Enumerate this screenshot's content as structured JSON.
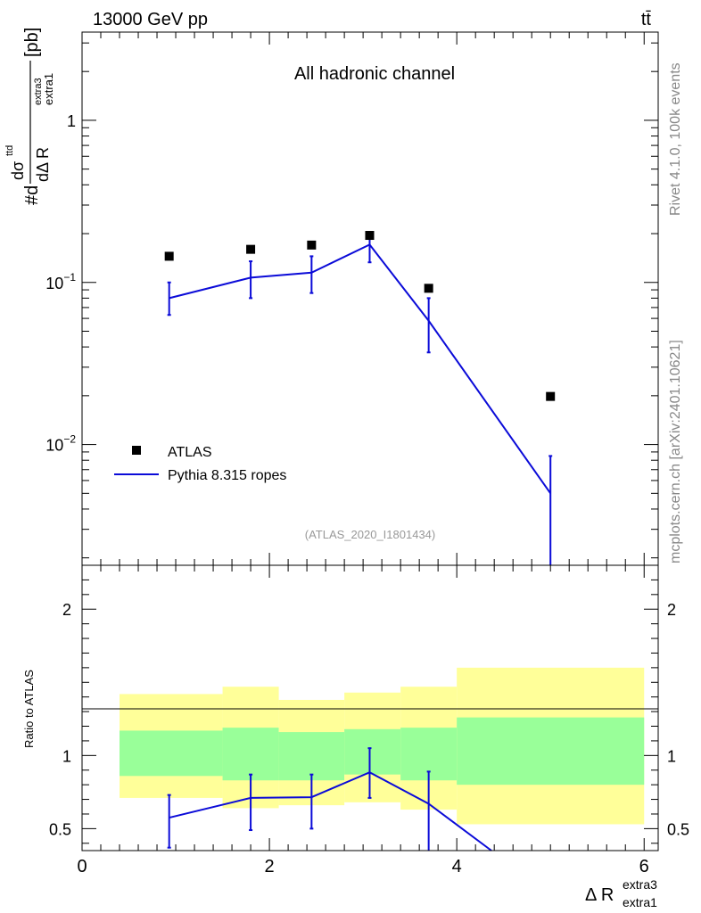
{
  "header": {
    "energy_label": "13000 GeV pp",
    "process_label": "tt̄"
  },
  "side_labels": {
    "rivet": "Rivet 4.1.0,  100k events",
    "mcplots": "mcplots.cern.ch [arXiv:2401.10621]"
  },
  "chart_data": [
    {
      "type": "scatter+line",
      "title": "All hadronic channel",
      "analysis_label": "(ATLAS_2020_I1801434)",
      "ylabel": {
        "prefix": "#d",
        "frac_num": "dσ",
        "frac_num_sup": "ttd",
        "frac_den": "dΔ R",
        "frac_den_sup": "extra3",
        "frac_den_sub": "extra1",
        "unit": "[pb]"
      },
      "yscale": "log",
      "ylim": [
        0.0018,
        3.5
      ],
      "xlim": [
        0,
        6.15
      ],
      "yticks": [
        {
          "value": 1,
          "base": "1",
          "exp": ""
        },
        {
          "value": 0.1,
          "base": "10",
          "exp": "−1"
        },
        {
          "value": 0.01,
          "base": "10",
          "exp": "−2"
        }
      ],
      "legend": {
        "placement": "lower-left",
        "entries": [
          {
            "label": "ATLAS",
            "style": "marker"
          },
          {
            "label": "Pythia 8.315 ropes",
            "style": "line"
          }
        ]
      },
      "colors": {
        "mc": "#0b0bd8",
        "data": "#000000"
      },
      "series": [
        {
          "name": "ATLAS",
          "x": [
            0.93,
            1.8,
            2.45,
            3.07,
            3.7,
            5.0
          ],
          "y": [
            0.145,
            0.16,
            0.17,
            0.195,
            0.092,
            0.0198
          ]
        },
        {
          "name": "Pythia 8.315 ropes",
          "x": [
            0.93,
            1.8,
            2.45,
            3.07,
            3.7,
            5.0
          ],
          "y": [
            0.08,
            0.107,
            0.115,
            0.171,
            0.058,
            0.005
          ],
          "err_lo": [
            0.063,
            0.08,
            0.086,
            0.133,
            0.037,
            0.0018
          ],
          "err_hi": [
            0.1,
            0.135,
            0.145,
            0.2,
            0.08,
            0.0085
          ]
        }
      ]
    },
    {
      "type": "ratio",
      "ylabel": "Ratio to ATLAS",
      "xlabel": {
        "base": "Δ R",
        "sup": "extra3",
        "sub": "extra1"
      },
      "ylim": [
        0.35,
        2.3
      ],
      "xlim": [
        0,
        6.15
      ],
      "xticks": [
        0,
        2,
        4,
        6
      ],
      "yticks": [
        0.5,
        1,
        2
      ],
      "colors": {
        "band_total": "#ffff99",
        "band_stat": "#99ff99",
        "mc": "#0b0bd8"
      },
      "bands": [
        {
          "x0": 0.4,
          "x1": 1.5,
          "outer_lo": 0.71,
          "outer_hi": 1.42,
          "inner_lo": 0.86,
          "inner_hi": 1.17
        },
        {
          "x0": 1.5,
          "x1": 2.1,
          "outer_lo": 0.64,
          "outer_hi": 1.47,
          "inner_lo": 0.83,
          "inner_hi": 1.19
        },
        {
          "x0": 2.1,
          "x1": 2.8,
          "outer_lo": 0.66,
          "outer_hi": 1.38,
          "inner_lo": 0.83,
          "inner_hi": 1.16
        },
        {
          "x0": 2.8,
          "x1": 3.4,
          "outer_lo": 0.68,
          "outer_hi": 1.43,
          "inner_lo": 0.87,
          "inner_hi": 1.18
        },
        {
          "x0": 3.4,
          "x1": 4.0,
          "outer_lo": 0.63,
          "outer_hi": 1.47,
          "inner_lo": 0.83,
          "inner_hi": 1.19
        },
        {
          "x0": 4.0,
          "x1": 6.0,
          "outer_lo": 0.53,
          "outer_hi": 1.6,
          "inner_lo": 0.8,
          "inner_hi": 1.26
        }
      ],
      "series": [
        {
          "name": "Pythia 8.315 ropes",
          "x": [
            0.93,
            1.8,
            2.45,
            3.07,
            3.7,
            4.37
          ],
          "y": [
            0.575,
            0.71,
            0.715,
            0.885,
            0.67,
            0.35
          ],
          "err_lo": [
            0.37,
            0.49,
            0.5,
            0.71,
            0.3,
            null
          ],
          "err_hi": [
            0.73,
            0.87,
            0.87,
            1.05,
            0.89,
            null
          ]
        }
      ]
    }
  ]
}
